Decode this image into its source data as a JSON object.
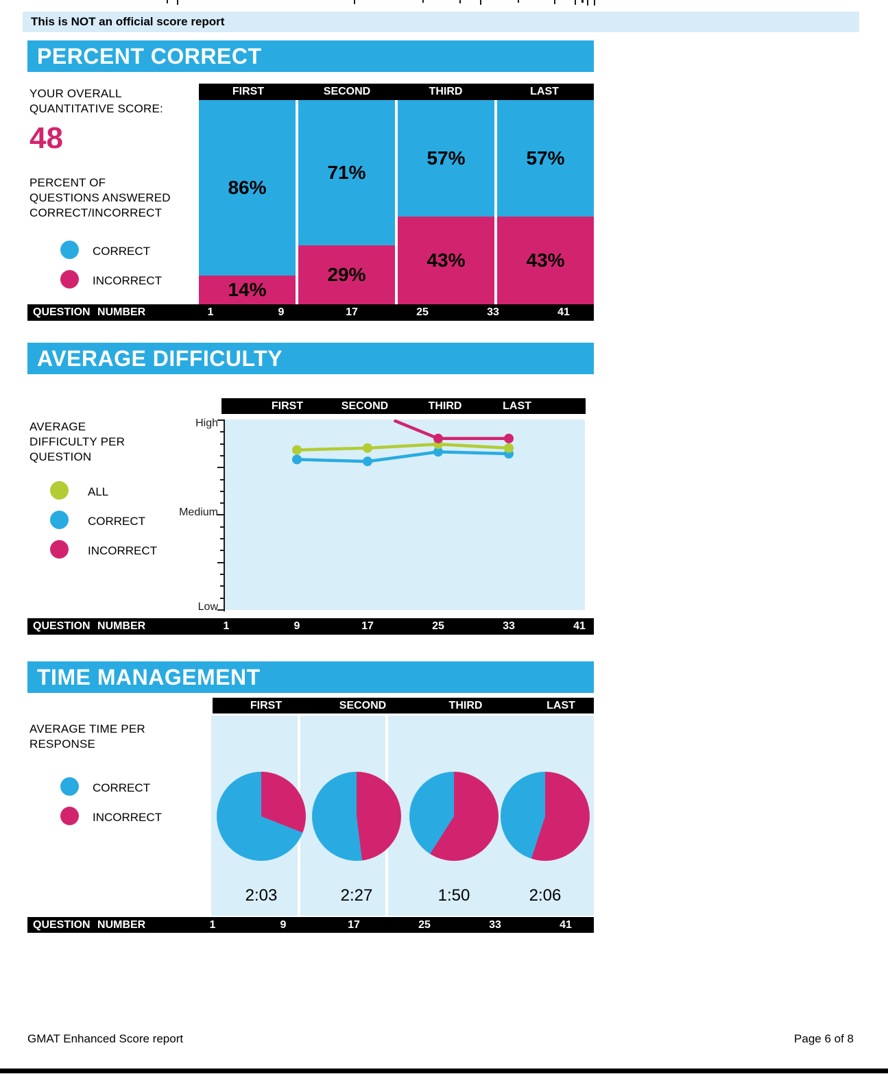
{
  "banner": {
    "text": "This is NOT an official score report"
  },
  "footer": {
    "left": "GMAT Enhanced Score report",
    "right": "Page 6 of 8"
  },
  "colors": {
    "section_header_blue": "#29ABE2",
    "correct_blue": "#29ABE2",
    "incorrect_pink": "#D2246E",
    "all_green": "#B2CC35",
    "panel_light_blue": "#D8EEF8",
    "banner_light_blue": "#D7ECF8",
    "axis_bar_black": "#000000",
    "score_pink": "#D2246E"
  },
  "sections": {
    "percent_correct": {
      "title": "PERCENT CORRECT",
      "score_label": "YOUR OVERALL QUANTITATIVE SCORE:",
      "score_value": "48",
      "description": "PERCENT OF QUESTIONS ANSWERED CORRECT/INCORRECT",
      "legend": [
        {
          "label": "CORRECT",
          "color": "#29ABE2"
        },
        {
          "label": "INCORRECT",
          "color": "#D2246E"
        }
      ],
      "axis_label": "QUESTION NUMBER"
    },
    "average_difficulty": {
      "title": "AVERAGE DIFFICULTY",
      "description": "AVERAGE DIFFICULTY PER QUESTION",
      "legend": [
        {
          "label": "ALL",
          "color": "#B2CC35"
        },
        {
          "label": "CORRECT",
          "color": "#29ABE2"
        },
        {
          "label": "INCORRECT",
          "color": "#D2246E"
        }
      ],
      "y_labels": [
        "High",
        "Medium",
        "Low"
      ],
      "axis_label": "QUESTION NUMBER"
    },
    "time_management": {
      "title": "TIME MANAGEMENT",
      "description": "AVERAGE TIME PER RESPONSE",
      "legend": [
        {
          "label": "CORRECT",
          "color": "#29ABE2"
        },
        {
          "label": "INCORRECT",
          "color": "#D2246E"
        }
      ],
      "axis_label": "QUESTION NUMBER"
    }
  },
  "chart_data": [
    {
      "type": "bar",
      "stacked": true,
      "section": "percent_correct",
      "title": "PERCENT CORRECT",
      "categories": [
        "FIRST",
        "SECOND",
        "THIRD",
        "LAST"
      ],
      "series": [
        {
          "name": "CORRECT",
          "color": "#29ABE2",
          "values": [
            86,
            71,
            57,
            57
          ]
        },
        {
          "name": "INCORRECT",
          "color": "#D2246E",
          "values": [
            14,
            29,
            43,
            43
          ]
        }
      ],
      "value_label_suffix": "%",
      "ylim": [
        0,
        100
      ],
      "x_axis": {
        "label": "QUESTION NUMBER",
        "ticks": [
          "1",
          "9",
          "17",
          "25",
          "33",
          "41"
        ]
      }
    },
    {
      "type": "line",
      "section": "average_difficulty",
      "title": "AVERAGE DIFFICULTY",
      "x": [
        9,
        17,
        25,
        33
      ],
      "series": [
        {
          "name": "ALL",
          "color": "#B2CC35",
          "values": [
            84,
            85,
            87,
            85
          ]
        },
        {
          "name": "CORRECT",
          "color": "#29ABE2",
          "values": [
            79,
            78,
            83,
            82
          ]
        },
        {
          "name": "INCORRECT",
          "color": "#D2246E",
          "points": [
            {
              "x": 20,
              "v": 99.5
            },
            {
              "x": 25,
              "v": 90
            },
            {
              "x": 33,
              "v": 90
            }
          ],
          "note": "line enters chart from above High between SECOND and THIRD"
        }
      ],
      "ylim": [
        0,
        100
      ],
      "y_scale": {
        "low": "Low",
        "medium": "Medium",
        "high": "High"
      },
      "x_axis": {
        "label": "QUESTION NUMBER",
        "ticks": [
          "1",
          "9",
          "17",
          "25",
          "33",
          "41"
        ]
      }
    },
    {
      "type": "pie",
      "section": "time_management",
      "title": "TIME MANAGEMENT",
      "categories": [
        "FIRST",
        "SECOND",
        "THIRD",
        "LAST"
      ],
      "pies": [
        {
          "incorrect_pct": 31,
          "correct_pct": 69,
          "avg_time": "2:03"
        },
        {
          "incorrect_pct": 48,
          "correct_pct": 52,
          "avg_time": "2:27"
        },
        {
          "incorrect_pct": 59,
          "correct_pct": 41,
          "avg_time": "1:50"
        },
        {
          "incorrect_pct": 55,
          "correct_pct": 45,
          "avg_time": "2:06"
        }
      ],
      "x_axis": {
        "label": "QUESTION NUMBER",
        "ticks": [
          "1",
          "9",
          "17",
          "25",
          "33",
          "41"
        ]
      }
    }
  ]
}
